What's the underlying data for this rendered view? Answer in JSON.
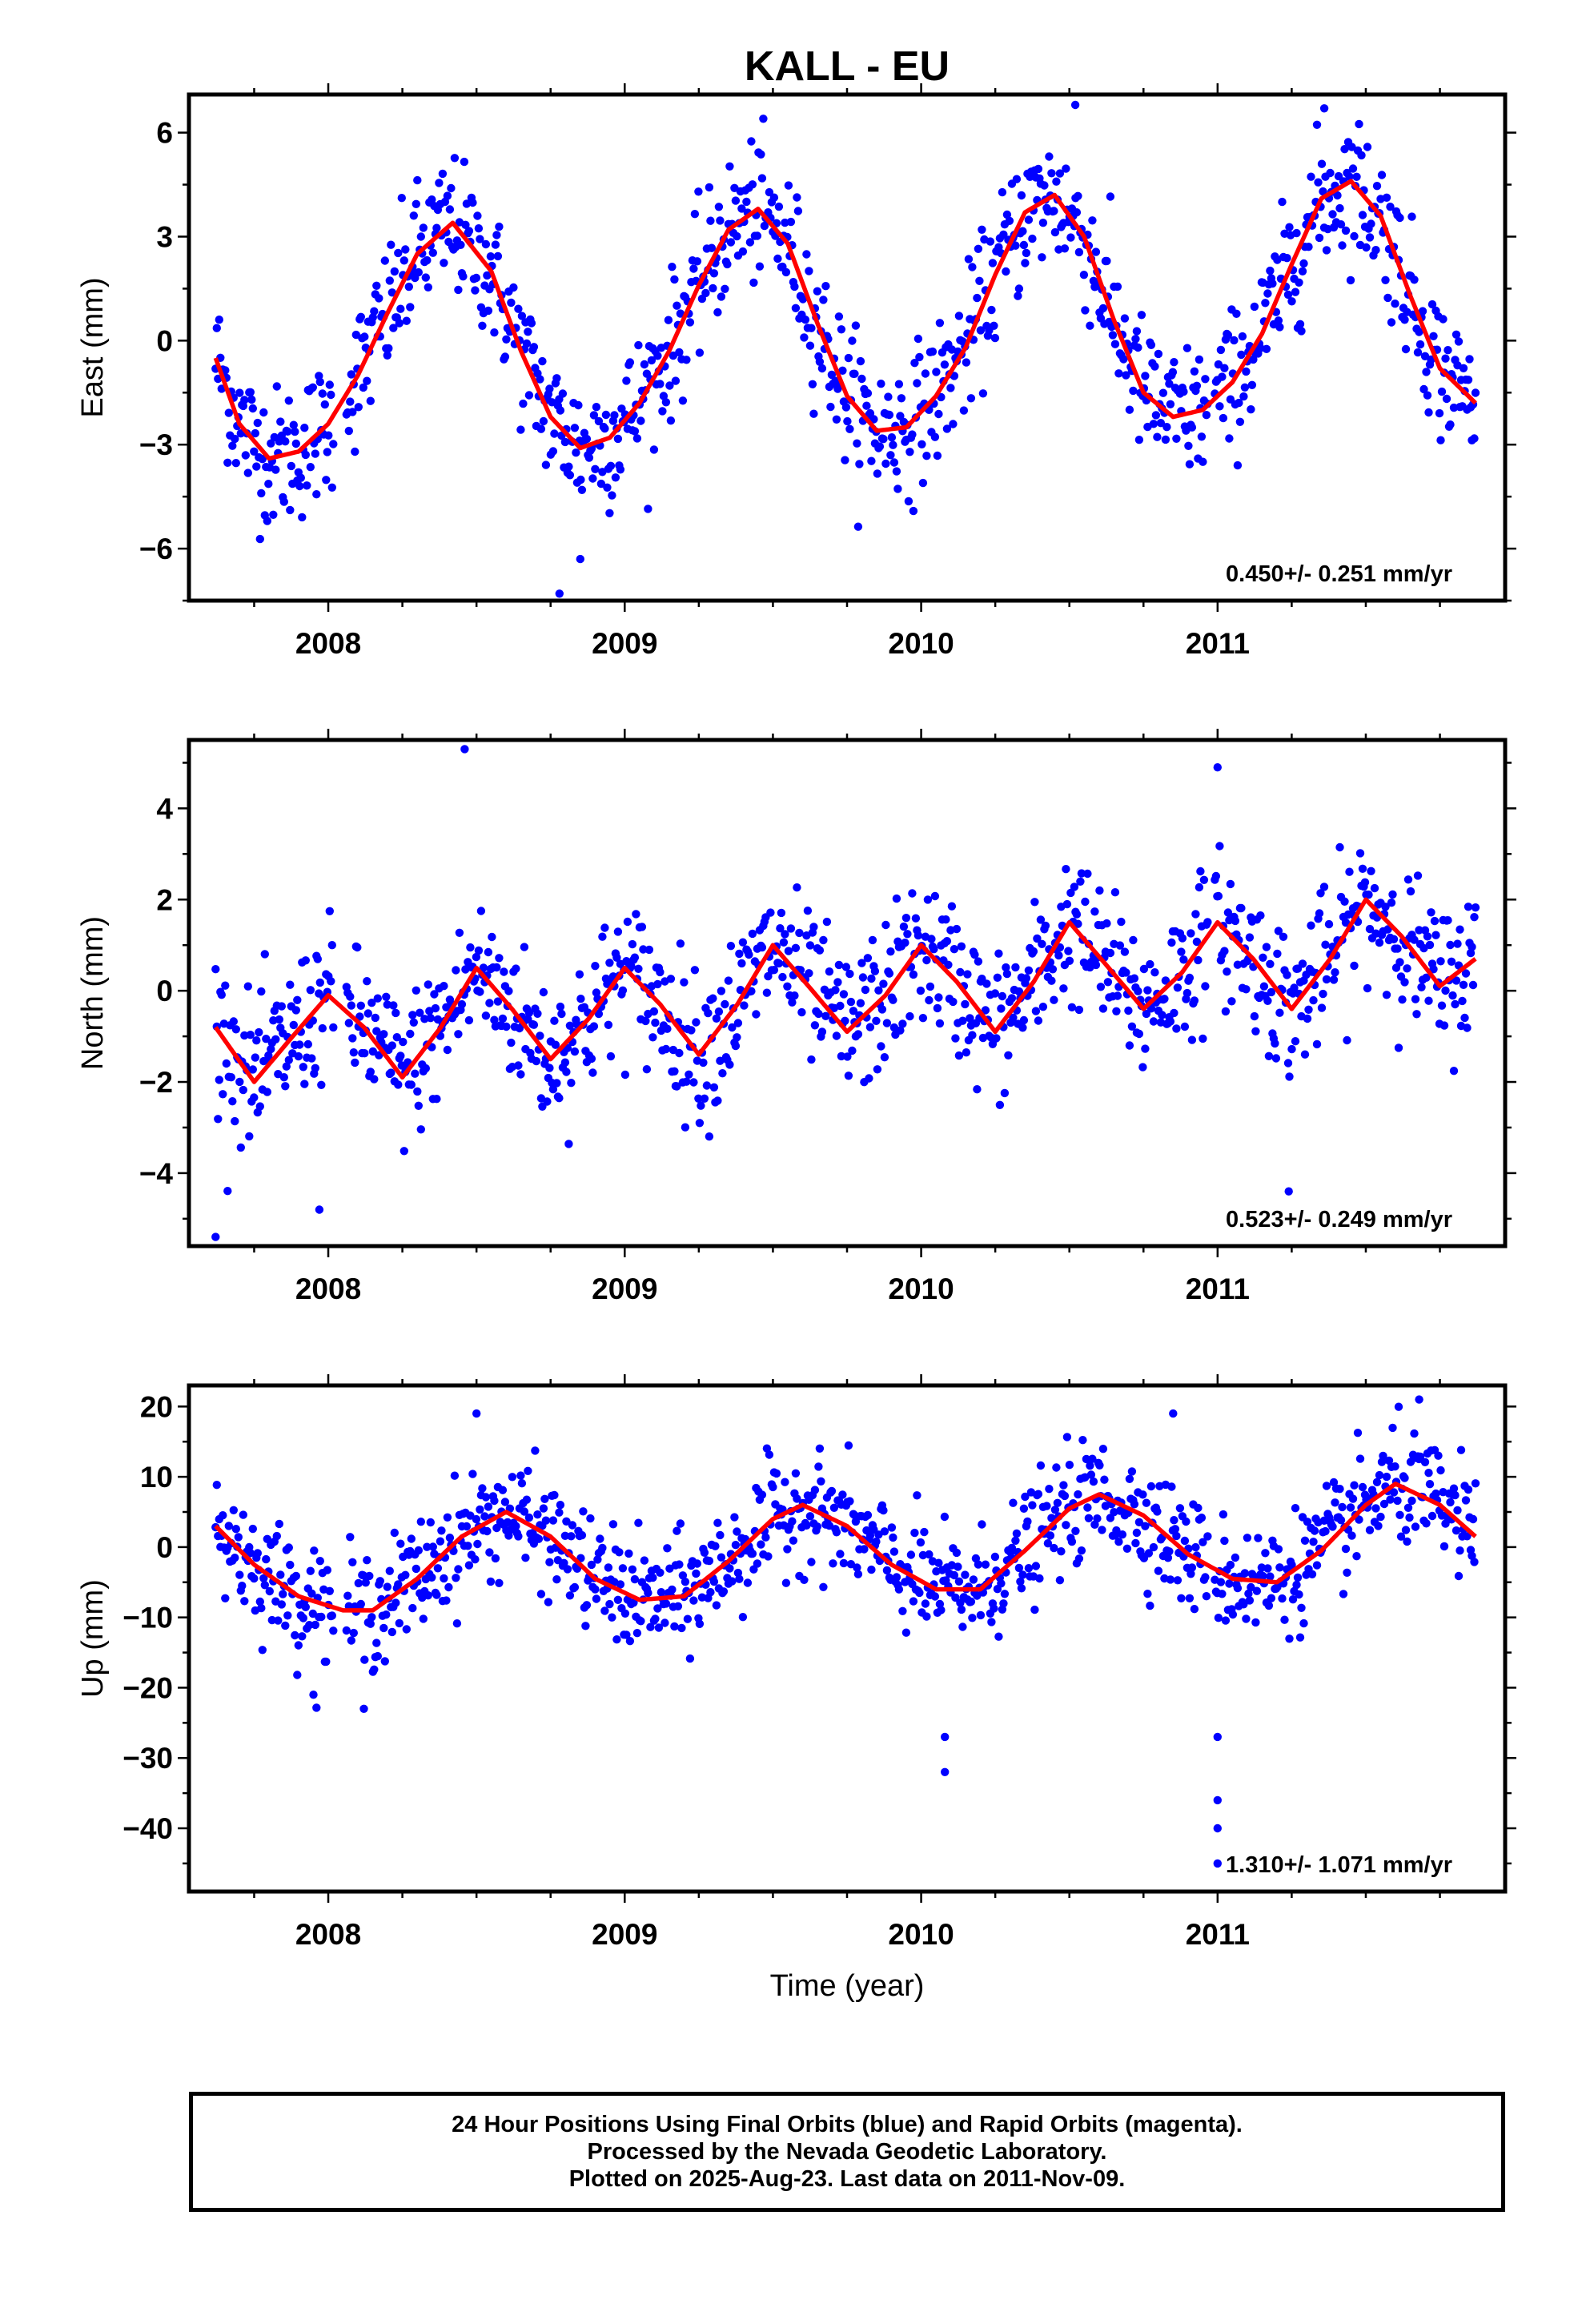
{
  "title": "KALL - EU",
  "xlabel": "Time (year)",
  "colors": {
    "points": "#0000ff",
    "fit": "#ff0000",
    "frame": "#000000"
  },
  "footer": {
    "line1": "24 Hour Positions Using Final Orbits (blue) and Rapid Orbits (magenta).",
    "line2": "Processed by the Nevada Geodetic Laboratory.",
    "line3": "Plotted on 2025-Aug-23. Last data on 2011-Nov-09."
  },
  "chart_data": [
    {
      "type": "scatter",
      "component": "east",
      "ylabel": "East (mm)",
      "rate_label": "0.450+/- 0.251 mm/yr",
      "xlim": [
        2007.53,
        2011.97
      ],
      "ylim": [
        -7.5,
        7.1
      ],
      "xticks": [
        2008,
        2009,
        2010,
        2011
      ],
      "xtick_labels": [
        "2008",
        "2009",
        "2010",
        "2011"
      ],
      "yticks": [
        -6,
        -3,
        0,
        3,
        6
      ],
      "ytick_labels": [
        "−6",
        "−3",
        "0",
        "3",
        "6"
      ],
      "fit": {
        "x": [
          2007.62,
          2007.7,
          2007.8,
          2007.9,
          2008.0,
          2008.1,
          2008.2,
          2008.3,
          2008.42,
          2008.55,
          2008.65,
          2008.75,
          2008.85,
          2008.95,
          2009.05,
          2009.15,
          2009.25,
          2009.35,
          2009.45,
          2009.55,
          2009.65,
          2009.75,
          2009.85,
          2009.95,
          2010.05,
          2010.15,
          2010.25,
          2010.35,
          2010.45,
          2010.55,
          2010.65,
          2010.75,
          2010.85,
          2010.95,
          2011.05,
          2011.15,
          2011.25,
          2011.35,
          2011.45,
          2011.55,
          2011.65,
          2011.75,
          2011.87
        ],
        "y": [
          -0.5,
          -2.4,
          -3.4,
          -3.2,
          -2.4,
          -1.0,
          0.8,
          2.5,
          3.4,
          2.0,
          -0.3,
          -2.2,
          -3.1,
          -2.8,
          -1.8,
          -0.3,
          1.6,
          3.2,
          3.8,
          2.8,
          0.5,
          -1.6,
          -2.6,
          -2.5,
          -1.6,
          -0.2,
          1.9,
          3.7,
          4.2,
          3.0,
          0.6,
          -1.5,
          -2.2,
          -2.0,
          -1.2,
          0.2,
          2.2,
          4.1,
          4.6,
          3.6,
          1.3,
          -0.8,
          -1.8
        ]
      },
      "points_model": {
        "sigma": 1.0,
        "count": 1050,
        "outliers": [
          [
            2008.78,
            -7.3
          ],
          [
            2008.85,
            -6.3
          ],
          [
            2010.52,
            6.8
          ],
          [
            2011.36,
            6.7
          ]
        ]
      }
    },
    {
      "type": "scatter",
      "component": "north",
      "ylabel": "North (mm)",
      "rate_label": "0.523+/- 0.249 mm/yr",
      "xlim": [
        2007.53,
        2011.97
      ],
      "ylim": [
        -5.6,
        5.5
      ],
      "xticks": [
        2008,
        2009,
        2010,
        2011
      ],
      "xtick_labels": [
        "2008",
        "2009",
        "2010",
        "2011"
      ],
      "yticks": [
        -4,
        -2,
        0,
        2,
        4
      ],
      "ytick_labels": [
        "−4",
        "−2",
        "0",
        "2",
        "4"
      ],
      "fit": {
        "x": [
          2007.62,
          2007.75,
          2007.88,
          2008.0,
          2008.12,
          2008.25,
          2008.38,
          2008.5,
          2008.62,
          2008.75,
          2008.88,
          2009.0,
          2009.12,
          2009.25,
          2009.38,
          2009.5,
          2009.62,
          2009.75,
          2009.88,
          2010.0,
          2010.12,
          2010.25,
          2010.38,
          2010.5,
          2010.62,
          2010.75,
          2010.88,
          2011.0,
          2011.12,
          2011.25,
          2011.38,
          2011.5,
          2011.62,
          2011.75,
          2011.87
        ],
        "y": [
          -0.8,
          -2.0,
          -1.0,
          -0.1,
          -0.8,
          -1.9,
          -0.8,
          0.5,
          -0.4,
          -1.5,
          -0.6,
          0.5,
          -0.3,
          -1.4,
          -0.3,
          1.0,
          0.1,
          -0.9,
          -0.1,
          1.0,
          0.2,
          -0.9,
          0.2,
          1.5,
          0.6,
          -0.4,
          0.4,
          1.5,
          0.7,
          -0.4,
          0.7,
          2.0,
          1.2,
          0.1,
          0.7
        ]
      },
      "points_model": {
        "sigma": 0.8,
        "count": 1050,
        "outliers": [
          [
            2008.46,
            5.3
          ],
          [
            2007.62,
            -5.4
          ],
          [
            2007.97,
            -4.8
          ],
          [
            2011.0,
            4.9
          ],
          [
            2011.24,
            -4.4
          ]
        ]
      }
    },
    {
      "type": "scatter",
      "component": "up",
      "ylabel": "Up (mm)",
      "rate_label": "1.310+/- 1.071 mm/yr",
      "xlim": [
        2007.53,
        2011.97
      ],
      "ylim": [
        -49,
        23
      ],
      "xticks": [
        2008,
        2009,
        2010,
        2011
      ],
      "xtick_labels": [
        "2008",
        "2009",
        "2010",
        "2011"
      ],
      "yticks": [
        -40,
        -30,
        -20,
        -10,
        0,
        10,
        20
      ],
      "ytick_labels": [
        "−40",
        "−30",
        "−20",
        "−10",
        "0",
        "10",
        "20"
      ],
      "fit": {
        "x": [
          2007.62,
          2007.75,
          2007.9,
          2008.05,
          2008.15,
          2008.3,
          2008.45,
          2008.6,
          2008.75,
          2008.9,
          2009.05,
          2009.2,
          2009.35,
          2009.5,
          2009.6,
          2009.75,
          2009.9,
          2010.05,
          2010.2,
          2010.35,
          2010.5,
          2010.6,
          2010.75,
          2010.9,
          2011.05,
          2011.2,
          2011.35,
          2011.5,
          2011.6,
          2011.75,
          2011.87
        ],
        "y": [
          3.0,
          -2.5,
          -7.0,
          -9.0,
          -9.0,
          -4.5,
          1.5,
          5.0,
          1.5,
          -4.5,
          -7.5,
          -7.0,
          -2.0,
          4.0,
          6.0,
          3.0,
          -2.5,
          -6.0,
          -6.0,
          -0.5,
          5.5,
          7.5,
          4.5,
          -1.0,
          -4.5,
          -5.0,
          -0.5,
          6.0,
          9.0,
          6.0,
          1.5
        ]
      },
      "points_model": {
        "sigma": 4.0,
        "count": 1050,
        "outliers": [
          [
            2008.12,
            -23
          ],
          [
            2007.95,
            -21
          ],
          [
            2010.08,
            -32
          ],
          [
            2010.08,
            -27
          ],
          [
            2011.0,
            -45
          ],
          [
            2011.0,
            -40
          ],
          [
            2011.0,
            -36
          ],
          [
            2011.0,
            -27
          ],
          [
            2008.5,
            19
          ],
          [
            2011.68,
            21
          ],
          [
            2010.85,
            19
          ]
        ]
      }
    }
  ]
}
